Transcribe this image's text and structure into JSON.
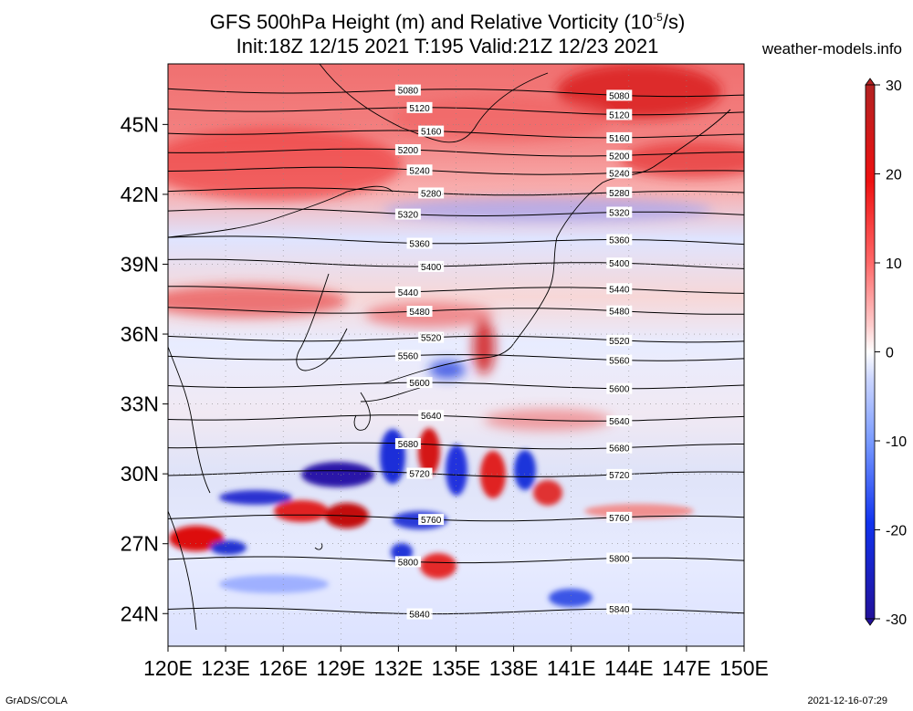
{
  "title_line1": "GFS 500hPa Height (m) and Relative Vorticity (10",
  "title_line1_sup": "-5",
  "title_line1_end": "/s)",
  "title_line2": "Init:18Z 12/15 2021 T:195 Valid:21Z 12/23 2021",
  "site": "weather-models.info",
  "footer_left": "GrADS/COLA",
  "footer_right": "2021-12-16-07:29",
  "lon_labels": [
    "120E",
    "123E",
    "126E",
    "129E",
    "132E",
    "135E",
    "138E",
    "141E",
    "144E",
    "147E",
    "150E"
  ],
  "lat_labels": [
    "24N",
    "27N",
    "30N",
    "33N",
    "36N",
    "39N",
    "42N",
    "45N"
  ],
  "colorbar": {
    "labels": [
      "30",
      "20",
      "10",
      "0",
      "-10",
      "-20",
      "-30"
    ],
    "colors": [
      "#b22222",
      "#ee1111",
      "#ff6666",
      "#ffcccc",
      "#ffffff",
      "#ccd6ff",
      "#7799ff",
      "#1133ee",
      "#22119a"
    ]
  },
  "contours": [
    {
      "label": "5080",
      "lat": 46.4
    },
    {
      "label": "5120",
      "lat": 45.6
    },
    {
      "label": "5160",
      "lat": 44.6
    },
    {
      "label": "5200",
      "lat": 43.8
    },
    {
      "label": "5240",
      "lat": 43.0
    },
    {
      "label": "5280",
      "lat": 42.1
    },
    {
      "label": "5320",
      "lat": 41.2
    },
    {
      "label": "5360",
      "lat": 40.0
    },
    {
      "label": "5400",
      "lat": 39.0
    },
    {
      "label": "5440",
      "lat": 37.9
    },
    {
      "label": "5480",
      "lat": 37.0
    },
    {
      "label": "5520",
      "lat": 35.8
    },
    {
      "label": "5560",
      "lat": 35.0
    },
    {
      "label": "5600",
      "lat": 33.8
    },
    {
      "label": "5640",
      "lat": 32.4
    },
    {
      "label": "5680",
      "lat": 31.2
    },
    {
      "label": "5720",
      "lat": 30.0
    },
    {
      "label": "5760",
      "lat": 28.1
    },
    {
      "label": "5800",
      "lat": 26.3
    },
    {
      "label": "5840",
      "lat": 24.1
    }
  ]
}
